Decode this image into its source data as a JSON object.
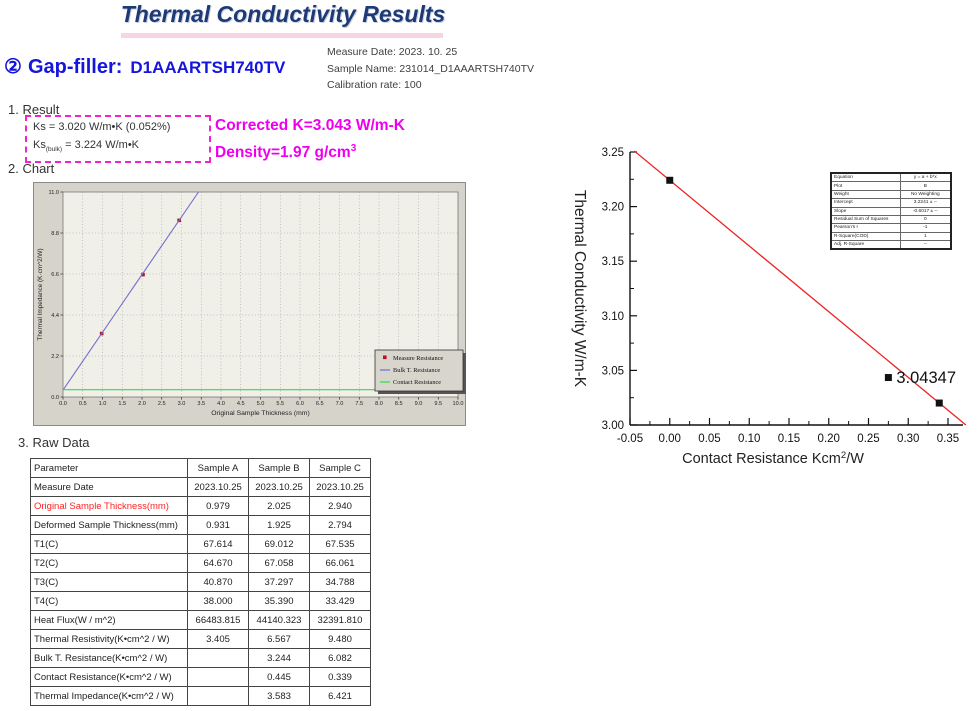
{
  "page": {
    "title": "Thermal Conductivity Results"
  },
  "sections": {
    "result": "1. Result",
    "chart": "2. Chart",
    "raw_data": "3. Raw Data"
  },
  "header": {
    "item_number": "②",
    "item_label": "Gap-filler:",
    "item_value": "D1AAARTSH740TV",
    "measure_date": "Measure Date: 2023. 10. 25",
    "sample_name": "Sample Name: 231014_D1AAARTSH740TV",
    "calibration_rate": "Calibration rate: 100"
  },
  "result": {
    "ks_line": "Ks = 3.020 W/m•K (0.052%)",
    "ks_bulk_pre": "Ks",
    "ks_bulk_sub": "(bulk)",
    "ks_bulk_post": " = 3.224 W/m•K",
    "corrected": "Corrected K=3.043 W/m-K",
    "density_main": "Density=1.97 g/cm",
    "density_sup": "3"
  },
  "raw_table": {
    "headers": [
      "Parameter",
      "Sample A",
      "Sample B",
      "Sample C"
    ],
    "highlight_color": "#ff2222",
    "rows": [
      {
        "label": "Measure Date",
        "a": "2023.10.25",
        "b": "2023.10.25",
        "c": "2023.10.25",
        "red": false
      },
      {
        "label": "Original Sample Thickness(mm)",
        "a": "0.979",
        "b": "2.025",
        "c": "2.940",
        "red": true
      },
      {
        "label": "Deformed Sample Thickness(mm)",
        "a": "0.931",
        "b": "1.925",
        "c": "2.794",
        "red": false
      },
      {
        "label": "T1(C)",
        "a": "67.614",
        "b": "69.012",
        "c": "67.535",
        "red": false
      },
      {
        "label": "T2(C)",
        "a": "64.670",
        "b": "67.058",
        "c": "66.061",
        "red": false
      },
      {
        "label": "T3(C)",
        "a": "40.870",
        "b": "37.297",
        "c": "34.788",
        "red": false
      },
      {
        "label": "T4(C)",
        "a": "38.000",
        "b": "35.390",
        "c": "33.429",
        "red": false
      },
      {
        "label": "Heat Flux(W / m^2)",
        "a": "66483.815",
        "b": "44140.323",
        "c": "32391.810",
        "red": false
      },
      {
        "label": "Thermal Resistivity(K•cm^2 / W)",
        "a": "3.405",
        "b": "6.567",
        "c": "9.480",
        "red": false
      },
      {
        "label": "Bulk T. Resistance(K•cm^2 / W)",
        "a": "",
        "b": "3.244",
        "c": "6.082",
        "red": false
      },
      {
        "label": "Contact Resistance(K•cm^2 / W)",
        "a": "",
        "b": "0.445",
        "c": "0.339",
        "red": false
      },
      {
        "label": "Thermal Impedance(K•cm^2 / W)",
        "a": "",
        "b": "3.583",
        "c": "6.421",
        "red": false
      }
    ]
  },
  "chart_data": [
    {
      "type": "line",
      "name": "thermal-impedance-vs-thickness",
      "xlabel": "Original Sample Thickness (mm)",
      "ylabel": "Thermal Impedance (K·cm^2/W)",
      "xlim": [
        0,
        10
      ],
      "ylim": [
        0,
        11
      ],
      "xticks": {
        "values": [
          0,
          0.5,
          1,
          1.5,
          2,
          2.5,
          3,
          3.5,
          4,
          4.5,
          5,
          5.5,
          6,
          6.5,
          7,
          7.5,
          8,
          8.5,
          9,
          9.5,
          10
        ],
        "labels": [
          "0.0",
          "0.5",
          "1.0",
          "1.5",
          "2.0",
          "2.5",
          "3.0",
          "3.5",
          "4.0",
          "4.5",
          "5.0",
          "5.5",
          "6.0",
          "6.5",
          "7.0",
          "7.5",
          "8.0",
          "8.5",
          "9.0",
          "9.5",
          "10.0"
        ]
      },
      "yticks": {
        "values": [
          0,
          2.2,
          4.4,
          6.6,
          8.8,
          11
        ],
        "labels": [
          "0.0",
          "2.2",
          "4.4",
          "6.6",
          "8.8",
          "11.0"
        ]
      },
      "grid": true,
      "colors": {
        "panel_bg": "#d6d3cb",
        "plot_bg": "#f0efe8",
        "grid": "#9a9a9a",
        "border": "#777777",
        "legend_bg": "#d8d5cd",
        "legend_shadow": "#555555"
      },
      "series": [
        {
          "name": "Measure Resistance",
          "kind": "scatter",
          "color": "#bb1122",
          "points": [
            [
              0.979,
              3.405
            ],
            [
              2.025,
              6.567
            ],
            [
              2.94,
              9.48
            ]
          ]
        },
        {
          "name": "Bulk T. Resistance",
          "kind": "line",
          "color": "#7070cc",
          "points": [
            [
              0,
              0.372
            ],
            [
              3.431,
              11
            ]
          ]
        },
        {
          "name": "Contact Resistance",
          "kind": "line",
          "color": "#33dd44",
          "points": [
            [
              0,
              0.392
            ],
            [
              10,
              0.392
            ]
          ]
        }
      ],
      "legend_position": "right-bottom"
    },
    {
      "type": "scatter",
      "name": "conductivity-vs-contact-resistance",
      "xlabel_parts": {
        "pre": "Contact Resistance Kcm",
        "sup": "2",
        "post": "/W"
      },
      "ylabel": "Thermal Conductivity W/m-K",
      "xlim": [
        -0.05,
        0.375
      ],
      "ylim": [
        3.0,
        3.25
      ],
      "xticks": {
        "values": [
          -0.05,
          0,
          0.05,
          0.1,
          0.15,
          0.2,
          0.25,
          0.3,
          0.35
        ],
        "labels": [
          "-0.05",
          "0.00",
          "0.05",
          "0.10",
          "0.15",
          "0.20",
          "0.25",
          "0.30",
          "0.35"
        ]
      },
      "yticks": {
        "values": [
          3.0,
          3.05,
          3.1,
          3.15,
          3.2,
          3.25
        ],
        "labels": [
          "3.00",
          "3.05",
          "3.10",
          "3.15",
          "3.20",
          "3.25"
        ]
      },
      "grid": false,
      "fit": {
        "intercept": 3.2241,
        "slope": -0.6017,
        "x_start": -0.0445,
        "x_end": 0.3725,
        "color": "#ee2222"
      },
      "points": [
        [
          0,
          3.2241
        ],
        [
          0.275,
          3.04347
        ],
        [
          0.339,
          3.0201
        ]
      ],
      "point_color": "#111111",
      "annotation": {
        "text": "3.04347",
        "x": 0.275,
        "y": 3.04347
      },
      "stats_table": [
        [
          "Equation",
          "y = a + b*x"
        ],
        [
          "Plot",
          "B"
        ],
        [
          "Weight",
          "No Weighting"
        ],
        [
          "Intercept",
          "3.2241 ± --"
        ],
        [
          "Slope",
          "-0.6017 ± --"
        ],
        [
          "Residual Sum of Squares",
          "0"
        ],
        [
          "Pearson's r",
          "-1"
        ],
        [
          "R-Square(COD)",
          "1"
        ],
        [
          "Adj. R-Square",
          "--"
        ]
      ]
    }
  ]
}
